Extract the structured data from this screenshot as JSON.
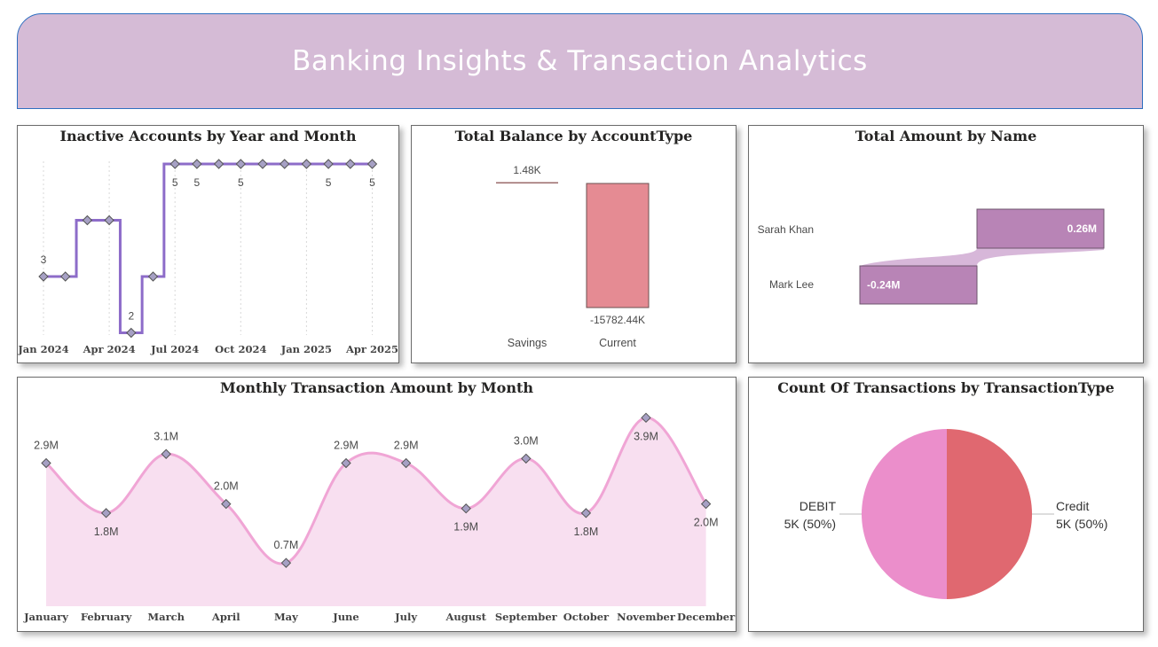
{
  "header": {
    "title": "Banking Insights & Transaction Analytics"
  },
  "colors": {
    "banner": "#d5bbd6",
    "purple_line": "#8d6cc9",
    "pink": "#f0a5d5",
    "pink_fill": "#f8dff0",
    "current_bar": "#e58b93",
    "name_bar": "#b884b6",
    "debit": "#eb8ecb",
    "credit": "#e06870"
  },
  "inactive_chart": {
    "title": "Inactive Accounts by Year and Month",
    "chart_data": {
      "type": "line",
      "step": true,
      "x_tick_labels": [
        "Jan 2024",
        "Apr 2024",
        "Jul 2024",
        "Oct 2024",
        "Jan 2025",
        "Apr 2025"
      ],
      "x": [
        "2024-01",
        "2024-02",
        "2024-03",
        "2024-04",
        "2024-05",
        "2024-06",
        "2024-07",
        "2024-08",
        "2024-09",
        "2024-10",
        "2024-11",
        "2024-12",
        "2025-01",
        "2025-02",
        "2025-03",
        "2025-04"
      ],
      "values": [
        3,
        3,
        4,
        4,
        2,
        3,
        5,
        5,
        5,
        5,
        5,
        5,
        5,
        5,
        5,
        5
      ],
      "ylim": [
        2,
        5
      ],
      "data_labels": [
        {
          "i": 0,
          "text": "3",
          "pos": "above"
        },
        {
          "i": 4,
          "text": "2",
          "pos": "above"
        },
        {
          "i": 6,
          "text": "5",
          "pos": "below"
        },
        {
          "i": 7,
          "text": "5",
          "pos": "below"
        },
        {
          "i": 9,
          "text": "5",
          "pos": "below"
        },
        {
          "i": 13,
          "text": "5",
          "pos": "below"
        },
        {
          "i": 15,
          "text": "5",
          "pos": "below"
        }
      ]
    }
  },
  "balance_chart": {
    "title": "Total Balance by AccountType",
    "chart_data": {
      "type": "bar",
      "categories": [
        "Savings",
        "Current"
      ],
      "values": [
        1.48,
        -15782.44
      ],
      "unit": "K",
      "labels": [
        "1.48K",
        "-15782.44K"
      ]
    }
  },
  "name_chart": {
    "title": "Total Amount by Name",
    "chart_data": {
      "type": "bar",
      "orientation": "horizontal",
      "categories": [
        "Sarah Khan",
        "Mark Lee"
      ],
      "values": [
        0.26,
        -0.24
      ],
      "unit": "M",
      "labels": [
        "0.26M",
        "-0.24M"
      ]
    }
  },
  "monthly_chart": {
    "title": "Monthly Transaction Amount by Month",
    "chart_data": {
      "type": "area",
      "categories": [
        "January",
        "February",
        "March",
        "April",
        "May",
        "June",
        "July",
        "August",
        "September",
        "October",
        "November",
        "December"
      ],
      "values": [
        2.9,
        1.8,
        3.1,
        2.0,
        0.7,
        2.9,
        2.9,
        1.9,
        3.0,
        1.8,
        3.9,
        2.0
      ],
      "labels": [
        "2.9M",
        "1.8M",
        "3.1M",
        "2.0M",
        "0.7M",
        "2.9M",
        "2.9M",
        "1.9M",
        "3.0M",
        "1.8M",
        "3.9M",
        "2.0M"
      ],
      "label_pos": [
        "above",
        "below",
        "above",
        "above",
        "above",
        "above",
        "above",
        "below",
        "above",
        "below",
        "below",
        "below"
      ],
      "unit": "M"
    }
  },
  "type_chart": {
    "title": "Count Of Transactions by TransactionType",
    "chart_data": {
      "type": "pie",
      "slices": [
        {
          "name": "DEBIT",
          "value": 5000,
          "label": "5K (50%)"
        },
        {
          "name": "Credit",
          "value": 5000,
          "label": "5K (50%)"
        }
      ]
    }
  }
}
